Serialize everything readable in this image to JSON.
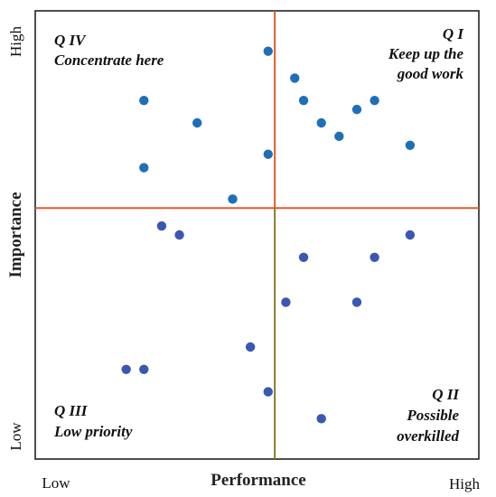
{
  "chart_data": {
    "type": "scatter",
    "xlabel": "Performance",
    "ylabel": "Importance",
    "xlim": [
      0,
      10
    ],
    "ylim": [
      0,
      10
    ],
    "x_ticks": [
      "Low",
      "High"
    ],
    "y_ticks": [
      "Low",
      "High"
    ],
    "divider": {
      "x": 5.4,
      "y": 5.6
    },
    "quadrants": [
      {
        "id": "q1",
        "lines": [
          "Q I",
          "Keep up the",
          "good work"
        ]
      },
      {
        "id": "q2",
        "lines": [
          "Q II",
          "Possible",
          "overkilled"
        ]
      },
      {
        "id": "q3",
        "lines": [
          "Q III",
          "Low priority"
        ]
      },
      {
        "id": "q4",
        "lines": [
          "Q IV",
          "Concentrate here"
        ]
      }
    ],
    "points": [
      {
        "x": 5.25,
        "y": 9.1
      },
      {
        "x": 5.85,
        "y": 8.5
      },
      {
        "x": 6.05,
        "y": 8.0
      },
      {
        "x": 6.45,
        "y": 7.5
      },
      {
        "x": 6.85,
        "y": 7.2
      },
      {
        "x": 7.25,
        "y": 7.8
      },
      {
        "x": 7.65,
        "y": 8.0
      },
      {
        "x": 8.45,
        "y": 7.0
      },
      {
        "x": 2.45,
        "y": 8.0
      },
      {
        "x": 3.65,
        "y": 7.5
      },
      {
        "x": 2.45,
        "y": 6.5
      },
      {
        "x": 5.25,
        "y": 6.8
      },
      {
        "x": 4.45,
        "y": 5.8
      },
      {
        "x": 2.85,
        "y": 5.2
      },
      {
        "x": 3.25,
        "y": 5.0
      },
      {
        "x": 6.05,
        "y": 4.5
      },
      {
        "x": 7.65,
        "y": 4.5
      },
      {
        "x": 8.45,
        "y": 5.0
      },
      {
        "x": 5.65,
        "y": 3.5
      },
      {
        "x": 7.25,
        "y": 3.5
      },
      {
        "x": 4.85,
        "y": 2.5
      },
      {
        "x": 2.05,
        "y": 2.0
      },
      {
        "x": 2.45,
        "y": 2.0
      },
      {
        "x": 5.25,
        "y": 1.5
      },
      {
        "x": 6.45,
        "y": 0.9
      }
    ],
    "colors": {
      "point": "#1f6fb8",
      "point_alt": "#3a58b0",
      "h_divider": "#e05a2b",
      "v_divider_top": "#e05a2b",
      "v_divider_bottom": "#8a7a2a",
      "frame": "#222222"
    },
    "grid": false,
    "legend": "none"
  }
}
